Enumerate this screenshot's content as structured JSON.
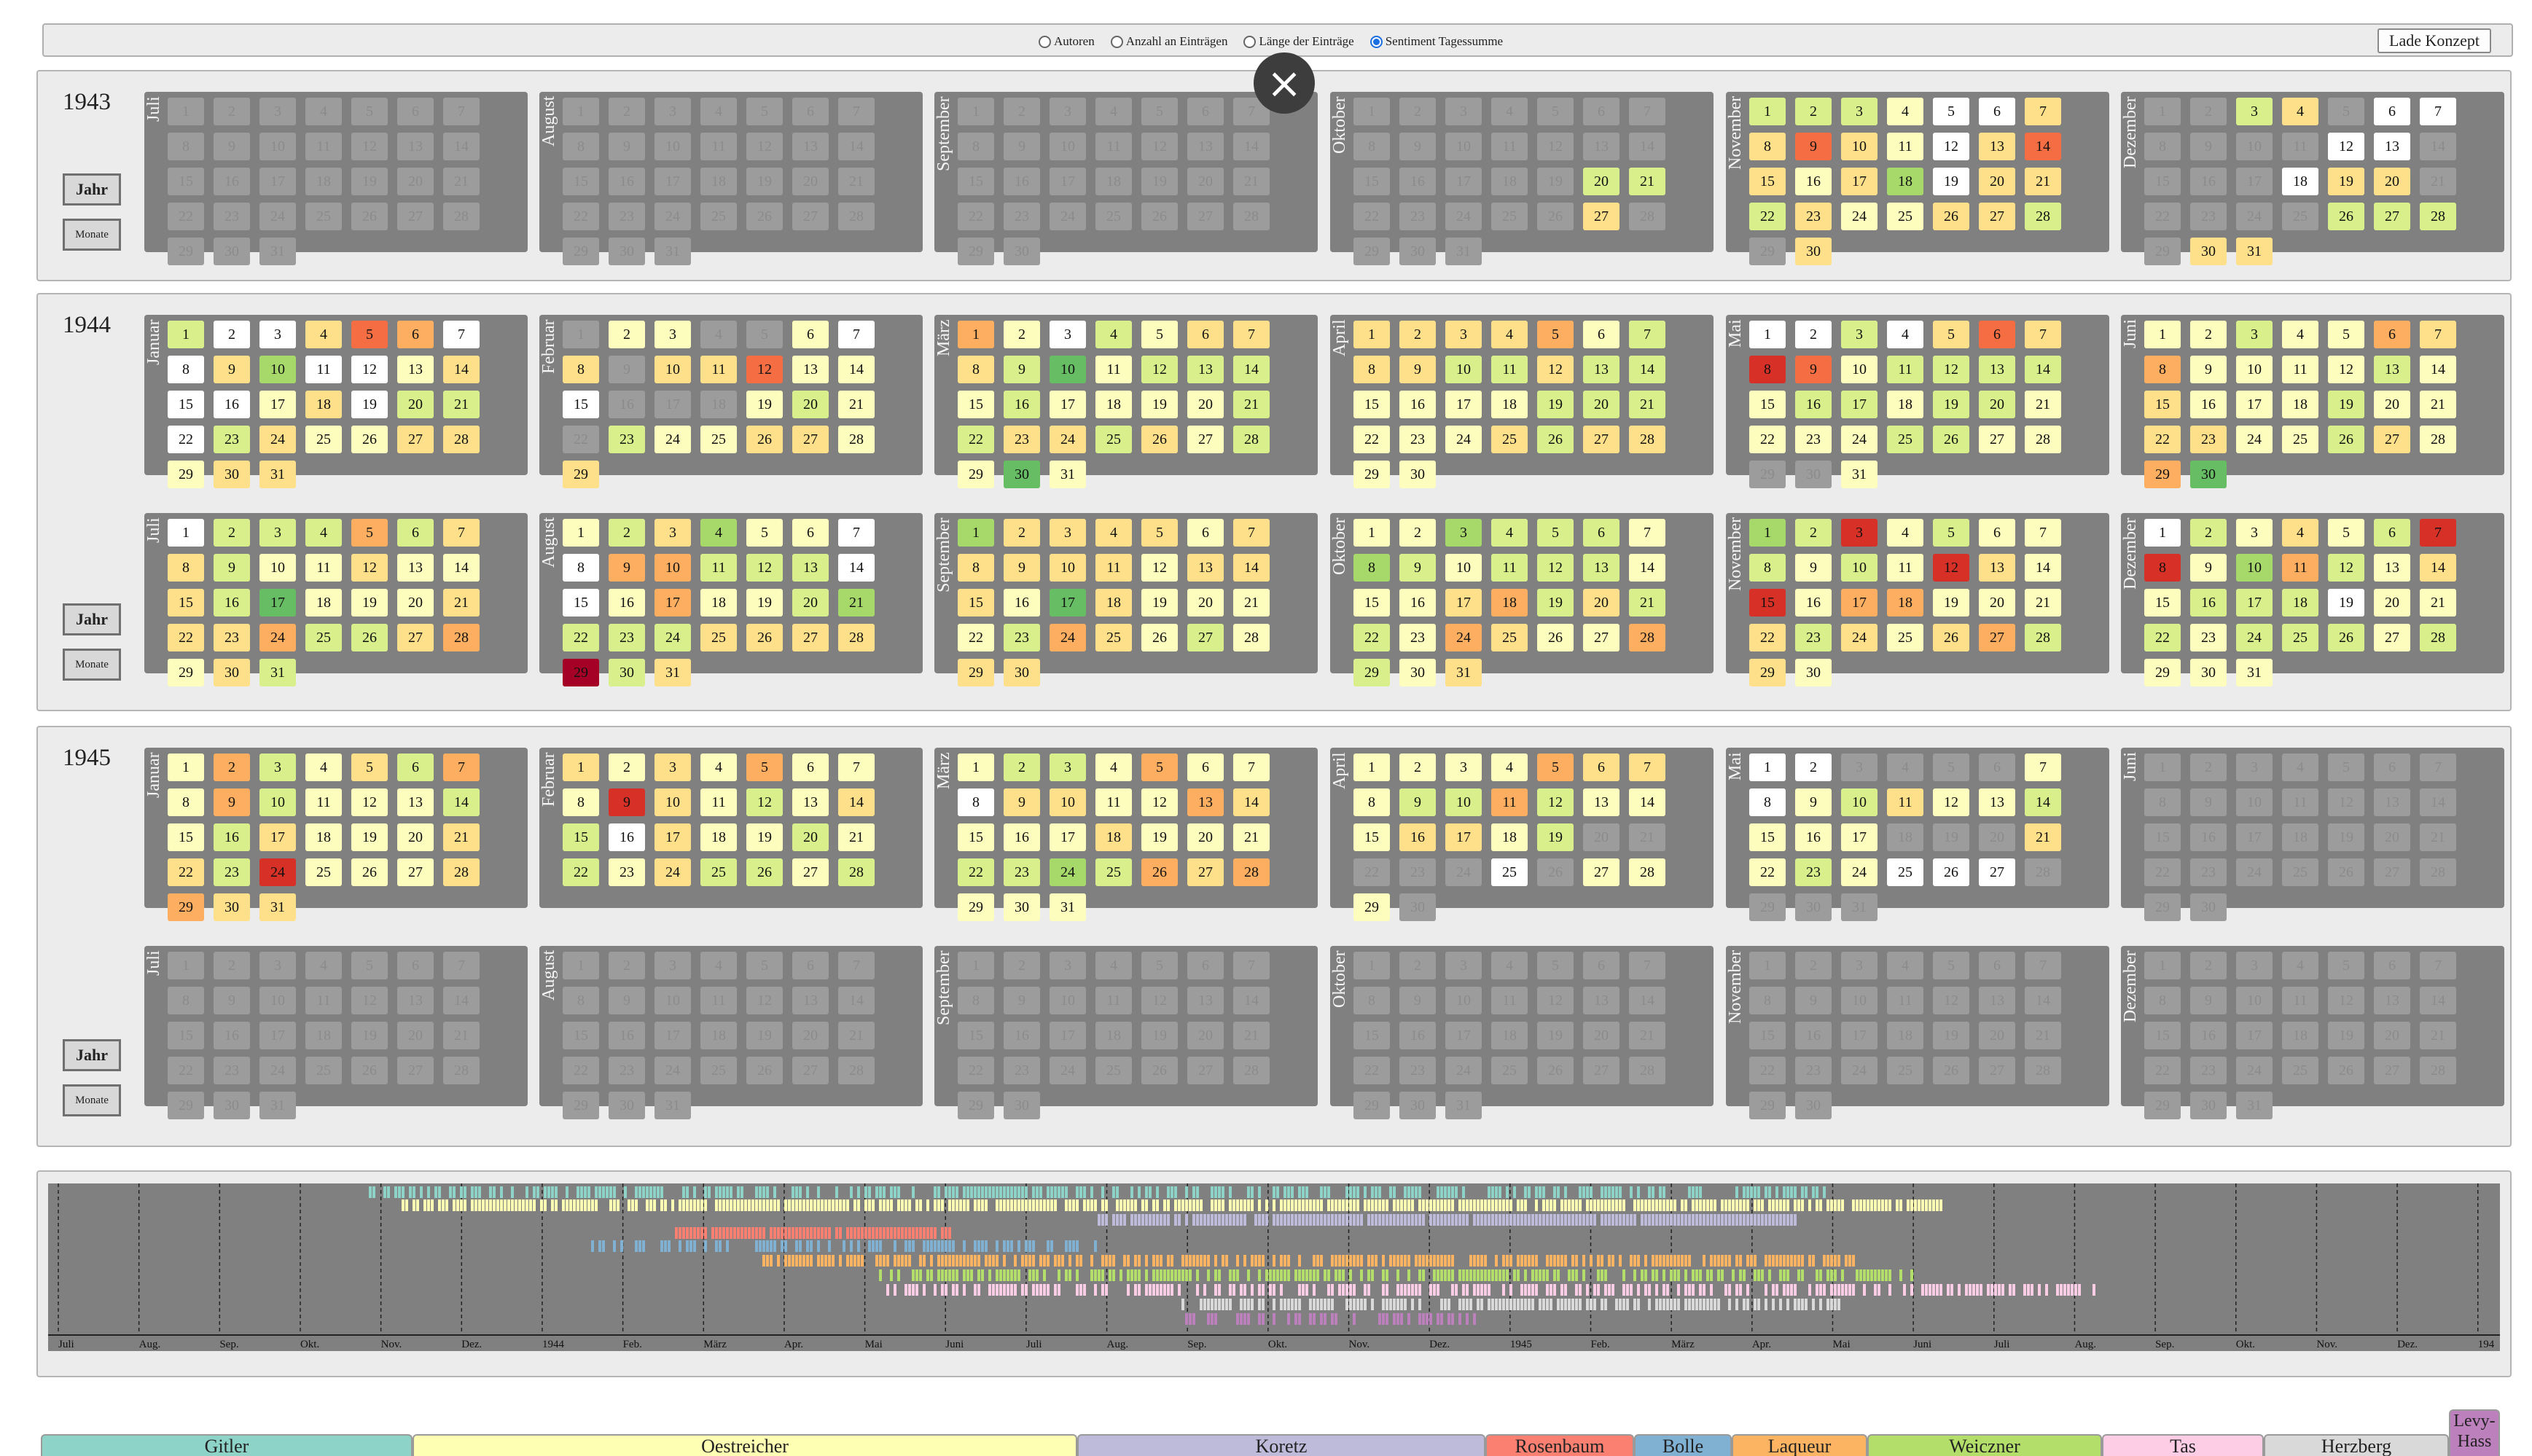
{
  "controls": {
    "radio_options": [
      {
        "label": "Autoren",
        "selected": false
      },
      {
        "label": "Anzahl an Einträgen",
        "selected": false
      },
      {
        "label": "Länge der Einträge",
        "selected": false
      },
      {
        "label": "Sentiment Tagessumme",
        "selected": true
      }
    ],
    "load_button": "Lade Konzept"
  },
  "buttons": {
    "year": "Jahr",
    "months": "Monate"
  },
  "close_icon": "×",
  "colors": {
    "none": "#9c9c9c",
    "white": "#ffffff",
    "pale_yellow": "#fdfdbe",
    "yellow": "#fee08b",
    "light_green": "#d9ef8b",
    "green": "#a6d96a",
    "mid_green": "#66bd63",
    "light_orange": "#fdae61",
    "orange": "#f46d43",
    "red": "#d73027",
    "dark_red": "#a50026"
  },
  "years": [
    {
      "year": "1943",
      "months": [
        {
          "name": "Juli",
          "days": 31,
          "lead": 0,
          "colors": "-------------------------------"
        },
        {
          "name": "August",
          "days": 31,
          "lead": 0,
          "colors": "-------------------------------"
        },
        {
          "name": "September",
          "days": 30,
          "lead": 0,
          "colors": "------------------------------"
        },
        {
          "name": "Oktober",
          "days": 31,
          "lead": 0,
          "colors": "-------------------gg-----Y----"
        },
        {
          "name": "November",
          "days": 30,
          "lead": 0,
          "colors": "gggpwwyyogypyoyypGwyygYpwyyg-ypw"
        },
        {
          "name": "Dezember",
          "days": 31,
          "lead": 0,
          "colors": "--gy-ww----ww----wyy---------yyy"
        }
      ]
    },
    {
      "year": "1944",
      "months": [
        {
          "name": "Januar",
          "days": 31,
          "lead": 0,
          "colors": "gwwyoOwwYpwwwgwwpywggwgypyypyyyypyg"
        },
        {
          "name": "Februar",
          "days": 29,
          "lead": 1,
          "colors": "-ppp--pw"
        },
        {
          "name": "März",
          "days": 31,
          "lead": 0,
          "colors": ""
        },
        {
          "name": "April",
          "days": 30,
          "lead": 0,
          "colors": ""
        },
        {
          "name": "Mai",
          "days": 31,
          "lead": 0,
          "colors": ""
        },
        {
          "name": "Juni",
          "days": 30,
          "lead": 0,
          "colors": ""
        },
        {
          "name": "Juli",
          "days": 31,
          "lead": 0,
          "colors": ""
        },
        {
          "name": "August",
          "days": 31,
          "lead": 0,
          "colors": ""
        },
        {
          "name": "September",
          "days": 30,
          "lead": 0,
          "colors": ""
        },
        {
          "name": "Oktober",
          "days": 31,
          "lead": 0,
          "colors": ""
        },
        {
          "name": "November",
          "days": 30,
          "lead": 0,
          "colors": ""
        },
        {
          "name": "Dezember",
          "days": 31,
          "lead": 0,
          "colors": ""
        }
      ]
    },
    {
      "year": "1945",
      "months": [
        {
          "name": "Januar",
          "days": 31,
          "lead": 0,
          "colors": ""
        },
        {
          "name": "Februar",
          "days": 28,
          "lead": 0,
          "colors": ""
        },
        {
          "name": "März",
          "days": 31,
          "lead": 0,
          "colors": ""
        },
        {
          "name": "April",
          "days": 30,
          "lead": 0,
          "colors": ""
        },
        {
          "name": "Mai",
          "days": 31,
          "lead": 0,
          "colors": ""
        },
        {
          "name": "Juni",
          "days": 30,
          "lead": 0,
          "colors": "-"
        },
        {
          "name": "Juli",
          "days": 31,
          "lead": 0,
          "colors": "-"
        },
        {
          "name": "August",
          "days": 31,
          "lead": 0,
          "colors": "-"
        },
        {
          "name": "September",
          "days": 30,
          "lead": 0,
          "colors": "-"
        },
        {
          "name": "Oktober",
          "days": 31,
          "lead": 0,
          "colors": "-"
        },
        {
          "name": "November",
          "days": 30,
          "lead": 0,
          "colors": "-"
        },
        {
          "name": "Dezember",
          "days": 31,
          "lead": 0,
          "colors": "-"
        }
      ]
    }
  ],
  "day_colors": {
    "1943": {
      "Juli": "-------------------------------",
      "August": "-------------------------------",
      "September": "------------------------------",
      "Oktober": "-------------------gg-----y----",
      "November": "gggpwwyyoypwyoypyGwyygyppyyg-yw",
      "Dezember": "--gy-ww----ww----wyy-----ggg-yyy"
    },
    "1944": {
      "Januar": "gwwyoOwwyGwwpywwpywggwgyppyypyy",
      "Februar": "-pp--pwy-yyoppw---pgp-gppyypypyp",
      "März": "Opwgpyyyg1pgggpgppppggyygypgp1pyy",
      "April": "yyyyOpgyyggyggppppgggpppygyyppgpy",
      "Mai": "wwgwyoyRopggggpggpggppppggpp--pggg",
      "Juni": "ppgppOyOppppgpypppgppyyppgypO1",
      "Juli": "wgggOgyygppyppyg1pppyyyOggyOpyg",
      "August": "pgyGppwwOOgggwwpOppgGgggyyyyTgyy",
      "September": "Gyyyypyyyyypyyyp1yppppgOypgpyyyyy",
      "Oktober": "ppGgggpGgpgggpppyOgyggpOyppOgpyOp",
      "November": "GgRpgppgpgpRypRpOOpppygypyOgypp",
      "Dezember": "wgpypgRRpGOgpypgggwppgpgggpgppp"
    },
    "1945": {
      "Januar": "pOgpygOpOgpppgpgypppyygRpppyOyyyG",
      "Februar": "ypypOpppRypgpygwyppgpgpyggpggpp",
      "März": "pggpOppwyyppOypppypppggGgOyOpppyy",
      "April": "ppppOyypggOgpppyypg-----w-ppp",
      "Mai": "ww----pwpgyppgppp---ypgpwww-------",
      "Juni": "------------------------------",
      "Juli": "-------------------------------",
      "August": "-------------------------------",
      "September": "------------------------------",
      "Oktober": "-------------------------------",
      "November": "------------------------------",
      "Dezember": "-------------------------------"
    }
  },
  "timeline": {
    "tick_labels": [
      "Juli",
      "Aug.",
      "Sep.",
      "Okt.",
      "Nov.",
      "Dez.",
      "1944",
      "Feb.",
      "März",
      "Apr.",
      "Mai",
      "Juni",
      "Juli",
      "Aug.",
      "Sep.",
      "Okt.",
      "Nov.",
      "Dez.",
      "1945",
      "Feb.",
      "März",
      "Apr.",
      "Mai",
      "Juni",
      "Juli",
      "Aug.",
      "Sep.",
      "Okt.",
      "Nov.",
      "Dez.",
      "194"
    ]
  },
  "legend": [
    {
      "name": "Gitler",
      "color": "#8dd3c7"
    },
    {
      "name": "Oestreicher",
      "color": "#ffffb3"
    },
    {
      "name": "Koretz",
      "color": "#bebada"
    },
    {
      "name": "Rosenbaum",
      "color": "#fb8072"
    },
    {
      "name": "Bolle",
      "color": "#80b1d3"
    },
    {
      "name": "Laqueur",
      "color": "#fdb462"
    },
    {
      "name": "Weiczner",
      "color": "#b3de69"
    },
    {
      "name": "Tas",
      "color": "#fccde5"
    },
    {
      "name": "Herzberg",
      "color": "#d9d9d9"
    },
    {
      "name": "Levy-Hass",
      "color": "#bc80bd"
    }
  ]
}
